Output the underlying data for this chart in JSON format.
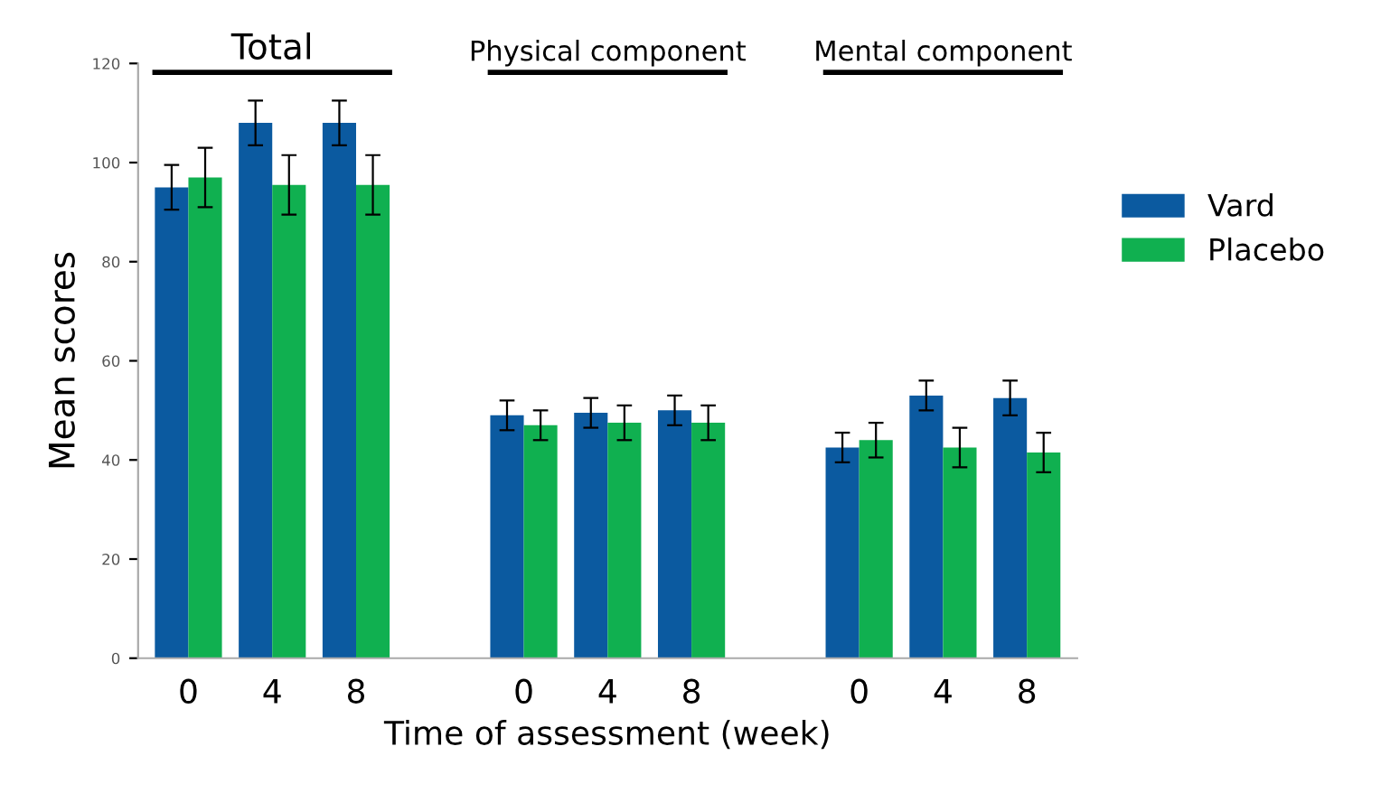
{
  "chart_data": {
    "type": "bar",
    "xlabel": "Time of assessment (week)",
    "ylabel": "Mean scores",
    "categories": [
      "0",
      "4",
      "8",
      null,
      "0",
      "4",
      "8",
      null,
      "0",
      "4",
      "8"
    ],
    "series": [
      {
        "name": "Vard",
        "color": "#0b5aa0",
        "values": [
          95,
          108,
          108,
          null,
          49,
          49.5,
          50,
          null,
          42.5,
          53,
          52.5
        ],
        "errors": [
          4.5,
          4.5,
          4.5,
          null,
          3,
          3,
          3,
          null,
          3,
          3,
          3.5
        ]
      },
      {
        "name": "Placebo",
        "color": "#10b050",
        "values": [
          97,
          95.5,
          95.5,
          null,
          47,
          47.5,
          47.5,
          null,
          44,
          42.5,
          41.5
        ],
        "errors": [
          6,
          6,
          6,
          null,
          3,
          3.5,
          3.5,
          null,
          3.5,
          4,
          4
        ]
      }
    ],
    "annotations": [
      "Total",
      "Physical component",
      "Mental component"
    ],
    "ylim": [
      0,
      120
    ],
    "yticks": [
      0,
      20,
      40,
      60,
      80,
      100,
      120
    ],
    "grid": false,
    "legend": "right"
  }
}
